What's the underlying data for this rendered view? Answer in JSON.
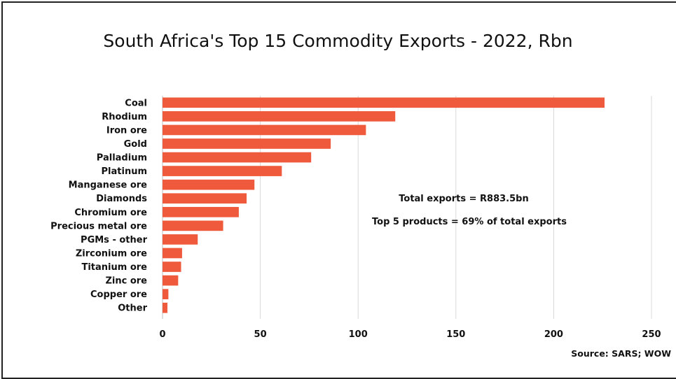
{
  "chart_data": {
    "type": "bar",
    "orientation": "horizontal",
    "title": "South Africa's Top 15 Commodity Exports - 2022, Rbn",
    "categories": [
      "Coal",
      "Rhodium",
      "Iron ore",
      "Gold",
      "Palladium",
      "Platinum",
      "Manganese ore",
      "Diamonds",
      "Chromium ore",
      "Precious metal ore",
      "PGMs - other",
      "Zirconium ore",
      "Titanium ore",
      "Zinc ore",
      "Copper ore",
      "Other"
    ],
    "values": [
      226,
      119,
      104,
      86,
      76,
      61,
      47,
      43,
      39,
      31,
      18,
      10,
      9.5,
      8,
      3,
      2.5
    ],
    "xlim": [
      0,
      250
    ],
    "xticks": [
      0,
      50,
      100,
      150,
      200,
      250
    ],
    "xlabel": "",
    "ylabel": "",
    "grid": "vertical",
    "bar_color": "#f05a3c",
    "annotations": [
      "Total exports = R883.5bn",
      "Top 5 products = 69% of total exports"
    ],
    "source": "Source: SARS; WOW"
  }
}
